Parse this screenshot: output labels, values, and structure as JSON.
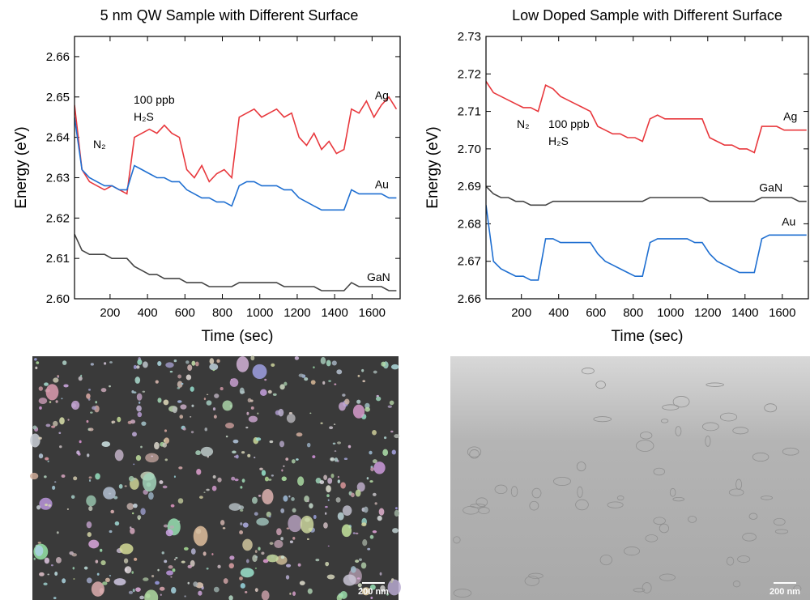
{
  "chart_data": [
    {
      "type": "line",
      "title": "5 nm QW Sample with Different Surface",
      "x_label": "Time (sec)",
      "y_label": "Energy (eV)",
      "x": [
        10,
        50,
        90,
        130,
        170,
        210,
        250,
        290,
        330,
        370,
        410,
        450,
        490,
        530,
        570,
        610,
        650,
        690,
        730,
        770,
        810,
        850,
        890,
        930,
        970,
        1010,
        1050,
        1090,
        1130,
        1170,
        1210,
        1250,
        1290,
        1330,
        1370,
        1410,
        1450,
        1490,
        1530,
        1570,
        1610,
        1650,
        1690,
        1730
      ],
      "xlim": [
        10,
        1750
      ],
      "xticks": [
        200,
        400,
        600,
        800,
        1000,
        1200,
        1400,
        1600
      ],
      "ylim": [
        2.6,
        2.665
      ],
      "yticks": [
        {
          "value": 2.6,
          "label": "2.60"
        },
        2.61,
        2.62,
        2.63,
        2.64,
        2.65,
        2.66
      ],
      "annotations": [
        "100 ppb",
        "H₂S",
        "N₂"
      ],
      "series": [
        {
          "name": "Ag",
          "color": "#e8383d",
          "values": [
            2.648,
            2.632,
            2.629,
            2.628,
            2.627,
            2.628,
            2.627,
            2.626,
            2.64,
            2.641,
            2.642,
            2.641,
            2.643,
            2.641,
            2.64,
            2.632,
            2.63,
            2.633,
            2.629,
            2.631,
            2.632,
            2.63,
            2.645,
            2.646,
            2.647,
            2.645,
            2.646,
            2.647,
            2.645,
            2.646,
            2.64,
            2.638,
            2.641,
            2.637,
            2.639,
            2.636,
            2.637,
            2.647,
            2.646,
            2.649,
            2.645,
            2.648,
            2.65,
            2.647
          ]
        },
        {
          "name": "Au",
          "color": "#1f6fd1",
          "values": [
            2.645,
            2.632,
            2.63,
            2.629,
            2.628,
            2.628,
            2.627,
            2.627,
            2.633,
            2.632,
            2.631,
            2.63,
            2.63,
            2.629,
            2.629,
            2.627,
            2.626,
            2.625,
            2.625,
            2.624,
            2.624,
            2.623,
            2.628,
            2.629,
            2.629,
            2.628,
            2.628,
            2.628,
            2.627,
            2.627,
            2.625,
            2.624,
            2.623,
            2.622,
            2.622,
            2.622,
            2.622,
            2.627,
            2.626,
            2.626,
            2.626,
            2.626,
            2.625,
            2.625
          ]
        },
        {
          "name": "GaN",
          "color": "#444444",
          "values": [
            2.616,
            2.612,
            2.611,
            2.611,
            2.611,
            2.61,
            2.61,
            2.61,
            2.608,
            2.607,
            2.606,
            2.606,
            2.605,
            2.605,
            2.605,
            2.604,
            2.604,
            2.604,
            2.603,
            2.603,
            2.603,
            2.603,
            2.604,
            2.604,
            2.604,
            2.604,
            2.604,
            2.604,
            2.603,
            2.603,
            2.603,
            2.603,
            2.603,
            2.602,
            2.602,
            2.602,
            2.602,
            2.604,
            2.603,
            2.603,
            2.603,
            2.603,
            2.602,
            2.602
          ]
        }
      ]
    },
    {
      "type": "line",
      "title": "Low Doped Sample with Different Surface",
      "x_label": "Time (sec)",
      "y_label": "Energy (eV)",
      "x": [
        10,
        50,
        90,
        130,
        170,
        210,
        250,
        290,
        330,
        370,
        410,
        450,
        490,
        530,
        570,
        610,
        650,
        690,
        730,
        770,
        810,
        850,
        890,
        930,
        970,
        1010,
        1050,
        1090,
        1130,
        1170,
        1210,
        1250,
        1290,
        1330,
        1370,
        1410,
        1450,
        1490,
        1530,
        1570,
        1610,
        1650,
        1690,
        1730
      ],
      "xlim": [
        10,
        1740
      ],
      "xticks": [
        200,
        400,
        600,
        800,
        1000,
        1200,
        1400,
        1600
      ],
      "ylim": [
        2.66,
        2.73
      ],
      "yticks": [
        2.66,
        2.67,
        2.68,
        2.69,
        {
          "value": 2.7,
          "label": "2.70"
        },
        2.71,
        2.72,
        2.73
      ],
      "annotations": [
        "N₂",
        "100 ppb",
        "H₂S"
      ],
      "series": [
        {
          "name": "Ag",
          "color": "#e8383d",
          "values": [
            2.718,
            2.715,
            2.714,
            2.713,
            2.712,
            2.711,
            2.711,
            2.71,
            2.717,
            2.716,
            2.714,
            2.713,
            2.712,
            2.711,
            2.71,
            2.706,
            2.705,
            2.704,
            2.704,
            2.703,
            2.703,
            2.702,
            2.708,
            2.709,
            2.708,
            2.708,
            2.708,
            2.708,
            2.708,
            2.708,
            2.703,
            2.702,
            2.701,
            2.701,
            2.7,
            2.7,
            2.699,
            2.706,
            2.706,
            2.706,
            2.705,
            2.705,
            2.705,
            2.705
          ]
        },
        {
          "name": "GaN",
          "color": "#444444",
          "values": [
            2.69,
            2.688,
            2.687,
            2.687,
            2.686,
            2.686,
            2.685,
            2.685,
            2.685,
            2.686,
            2.686,
            2.686,
            2.686,
            2.686,
            2.686,
            2.686,
            2.686,
            2.686,
            2.686,
            2.686,
            2.686,
            2.686,
            2.687,
            2.687,
            2.687,
            2.687,
            2.687,
            2.687,
            2.687,
            2.687,
            2.686,
            2.686,
            2.686,
            2.686,
            2.686,
            2.686,
            2.686,
            2.687,
            2.687,
            2.687,
            2.687,
            2.687,
            2.686,
            2.686
          ]
        },
        {
          "name": "Au",
          "color": "#1f6fd1",
          "values": [
            2.685,
            2.67,
            2.668,
            2.667,
            2.666,
            2.666,
            2.665,
            2.665,
            2.676,
            2.676,
            2.675,
            2.675,
            2.675,
            2.675,
            2.675,
            2.672,
            2.67,
            2.669,
            2.668,
            2.667,
            2.666,
            2.666,
            2.675,
            2.676,
            2.676,
            2.676,
            2.676,
            2.676,
            2.675,
            2.675,
            2.672,
            2.67,
            2.669,
            2.668,
            2.667,
            2.667,
            2.667,
            2.676,
            2.677,
            2.677,
            2.677,
            2.677,
            2.677,
            2.677
          ]
        }
      ]
    }
  ],
  "images": [
    {
      "scale_bar": "200 nm"
    },
    {
      "scale_bar": "200 nm"
    }
  ]
}
